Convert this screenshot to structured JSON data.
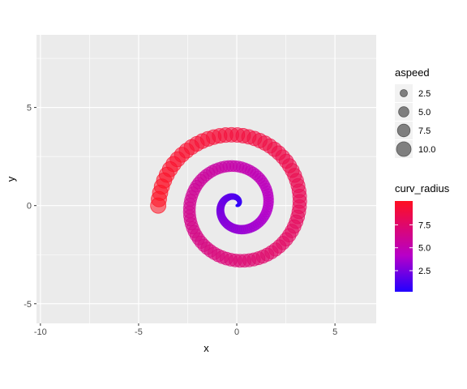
{
  "chart_data": {
    "type": "scatter",
    "xlabel": "x",
    "ylabel": "y",
    "xlim": [
      -10.2,
      7.1
    ],
    "ylim": [
      -6.0,
      8.7
    ],
    "x_ticks": [
      -10,
      -5,
      0,
      5
    ],
    "y_ticks": [
      -5,
      0,
      5
    ],
    "x_tick_labels": [
      "-10",
      "-5",
      "0",
      "5"
    ],
    "y_tick_labels": [
      "-5",
      "0",
      "5"
    ],
    "grid": true,
    "panel_background": "#ebebeb",
    "grid_color": "#ffffff",
    "legend_position": "right",
    "point_opacity": 0.55,
    "spiral": {
      "center": [
        0,
        0
      ],
      "growth_per_turn": 1.6,
      "theta_start_deg": 0,
      "theta_end_deg": 900,
      "n_points": 190,
      "aspeed_range": [
        0.2,
        11.2
      ],
      "curv_radius_range": [
        0.2,
        10.1
      ]
    },
    "size_legend": {
      "title": "aspeed",
      "values": [
        2.5,
        5.0,
        7.5,
        10.0
      ],
      "labels": [
        "2.5",
        "5.0",
        "7.5",
        "10.0"
      ],
      "fill": "#7f7f7f"
    },
    "color_legend": {
      "title": "curv_radius",
      "min": 0.2,
      "max": 10.1,
      "tick_values": [
        2.5,
        5.0,
        7.5
      ],
      "tick_labels": [
        "2.5",
        "5.0",
        "7.5"
      ],
      "low_color": "#2200ff",
      "mid_color": "#b700c8",
      "high_color": "#ff0f21"
    }
  }
}
